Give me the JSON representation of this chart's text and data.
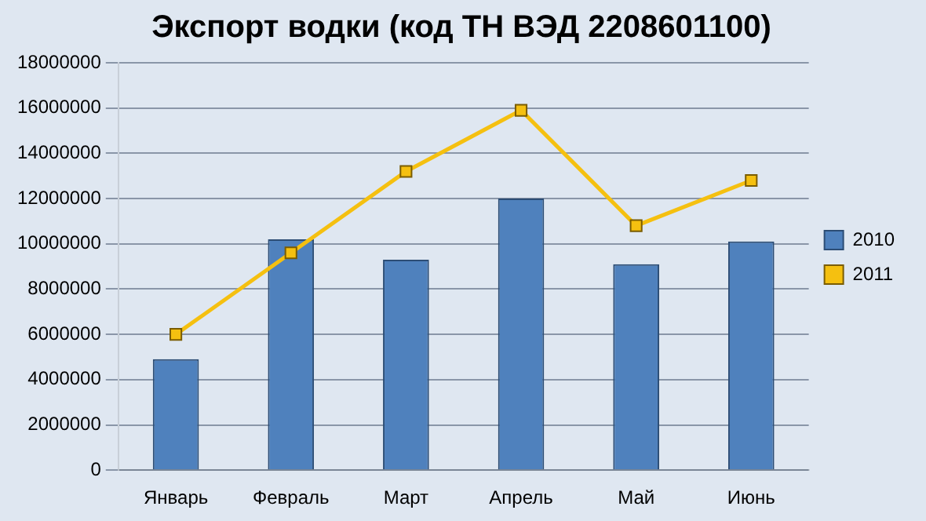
{
  "chart_data": {
    "type": "bar",
    "title": "Экспорт водки (код ТН ВЭД 2208601100)",
    "categories": [
      "Январь",
      "Февраль",
      "Март",
      "Апрель",
      "Май",
      "Июнь"
    ],
    "series": [
      {
        "name": "2010",
        "color": "#4f81bd",
        "values": [
          4900000,
          10200000,
          9300000,
          12000000,
          9100000,
          10100000
        ]
      },
      {
        "name": "2011",
        "type": "line",
        "color": "#f5c010",
        "values": [
          6000000,
          9600000,
          13200000,
          15900000,
          10800000,
          12800000
        ]
      }
    ],
    "ylim": [
      0,
      18000000
    ],
    "yticks": [
      0,
      2000000,
      4000000,
      6000000,
      8000000,
      10000000,
      12000000,
      14000000,
      16000000,
      18000000
    ],
    "grid": "y",
    "legend": "right",
    "marker": "square",
    "line_style": "solid"
  }
}
